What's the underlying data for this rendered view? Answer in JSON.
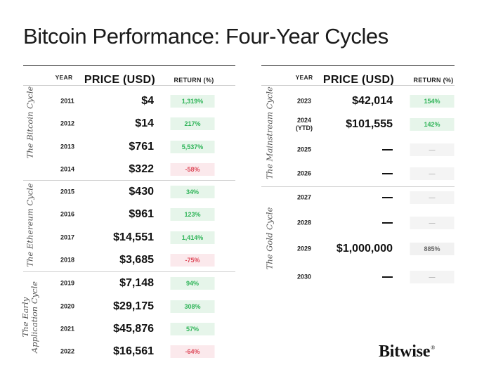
{
  "title": "Bitcoin Performance: Four-Year Cycles",
  "headers": {
    "year": "YEAR",
    "price": "PRICE (USD)",
    "return": "RETURN (%)"
  },
  "left_table": {
    "cycles": [
      {
        "label": "The Bitcoin Cycle",
        "rows": [
          {
            "year": "2011",
            "price": "$4",
            "return": "1,319%",
            "status": "pos"
          },
          {
            "year": "2012",
            "price": "$14",
            "return": "217%",
            "status": "pos"
          },
          {
            "year": "2013",
            "price": "$761",
            "return": "5,537%",
            "status": "pos"
          },
          {
            "year": "2014",
            "price": "$322",
            "return": "-58%",
            "status": "neg"
          }
        ]
      },
      {
        "label": "The Ethereum Cycle",
        "rows": [
          {
            "year": "2015",
            "price": "$430",
            "return": "34%",
            "status": "pos"
          },
          {
            "year": "2016",
            "price": "$961",
            "return": "123%",
            "status": "pos"
          },
          {
            "year": "2017",
            "price": "$14,551",
            "return": "1,414%",
            "status": "pos"
          },
          {
            "year": "2018",
            "price": "$3,685",
            "return": "-75%",
            "status": "neg"
          }
        ]
      },
      {
        "label_line1": "The Early",
        "label_line2": "Application Cycle",
        "rows": [
          {
            "year": "2019",
            "price": "$7,148",
            "return": "94%",
            "status": "pos"
          },
          {
            "year": "2020",
            "price": "$29,175",
            "return": "308%",
            "status": "pos"
          },
          {
            "year": "2021",
            "price": "$45,876",
            "return": "57%",
            "status": "pos"
          },
          {
            "year": "2022",
            "price": "$16,561",
            "return": "-64%",
            "status": "neg"
          }
        ]
      }
    ]
  },
  "right_table": {
    "cycles": [
      {
        "label": "The Mainstream Cycle",
        "rows": [
          {
            "year": "2023",
            "price": "$42,014",
            "return": "154%",
            "status": "pos"
          },
          {
            "year": "2024",
            "year_note": "(YTD)",
            "price": "$101,555",
            "return": "142%",
            "status": "pos"
          },
          {
            "year": "2025",
            "price": "",
            "return": "",
            "status": "empty"
          },
          {
            "year": "2026",
            "price": "",
            "return": "",
            "status": "empty"
          }
        ]
      },
      {
        "label": "The Gold Cycle",
        "rows": [
          {
            "year": "2027",
            "price": "",
            "return": "",
            "status": "empty"
          },
          {
            "year": "2028",
            "price": "",
            "return": "",
            "status": "empty"
          },
          {
            "year": "2029",
            "price": "$1,000,000",
            "return": "885%",
            "status": "neu"
          },
          {
            "year": "2030",
            "price": "",
            "return": "",
            "status": "empty"
          }
        ]
      }
    ]
  },
  "logo": "Bitwise",
  "logo_mark": "®",
  "colors": {
    "positive_text": "#2fb458",
    "positive_bg": "#e6f5ea",
    "negative_text": "#de4a5a",
    "negative_bg": "#fbe9ec",
    "neutral_bg": "#f1f1f1"
  }
}
